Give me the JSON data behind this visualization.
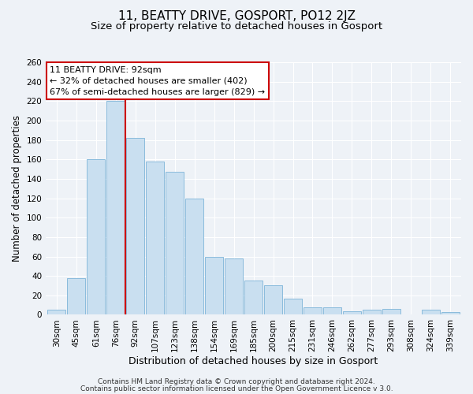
{
  "title": "11, BEATTY DRIVE, GOSPORT, PO12 2JZ",
  "subtitle": "Size of property relative to detached houses in Gosport",
  "xlabel": "Distribution of detached houses by size in Gosport",
  "ylabel": "Number of detached properties",
  "categories": [
    "30sqm",
    "45sqm",
    "61sqm",
    "76sqm",
    "92sqm",
    "107sqm",
    "123sqm",
    "138sqm",
    "154sqm",
    "169sqm",
    "185sqm",
    "200sqm",
    "215sqm",
    "231sqm",
    "246sqm",
    "262sqm",
    "277sqm",
    "293sqm",
    "308sqm",
    "324sqm",
    "339sqm"
  ],
  "values": [
    5,
    38,
    160,
    220,
    182,
    158,
    147,
    120,
    60,
    58,
    35,
    30,
    17,
    8,
    8,
    4,
    5,
    6,
    0,
    5,
    3
  ],
  "bar_color": "#c9dff0",
  "bar_edge_color": "#7db4d8",
  "vline_x": 3.5,
  "vline_color": "#cc0000",
  "ylim": [
    0,
    260
  ],
  "yticks": [
    0,
    20,
    40,
    60,
    80,
    100,
    120,
    140,
    160,
    180,
    200,
    220,
    240,
    260
  ],
  "annotation_title": "11 BEATTY DRIVE: 92sqm",
  "annotation_line1": "← 32% of detached houses are smaller (402)",
  "annotation_line2": "67% of semi-detached houses are larger (829) →",
  "annotation_box_color": "#ffffff",
  "annotation_box_edge": "#cc0000",
  "footer_line1": "Contains HM Land Registry data © Crown copyright and database right 2024.",
  "footer_line2": "Contains public sector information licensed under the Open Government Licence v 3.0.",
  "background_color": "#eef2f7",
  "grid_color": "#ffffff",
  "title_fontsize": 11,
  "subtitle_fontsize": 9.5,
  "xlabel_fontsize": 9,
  "ylabel_fontsize": 8.5,
  "tick_fontsize": 7.5,
  "annotation_fontsize": 8,
  "footer_fontsize": 6.5
}
